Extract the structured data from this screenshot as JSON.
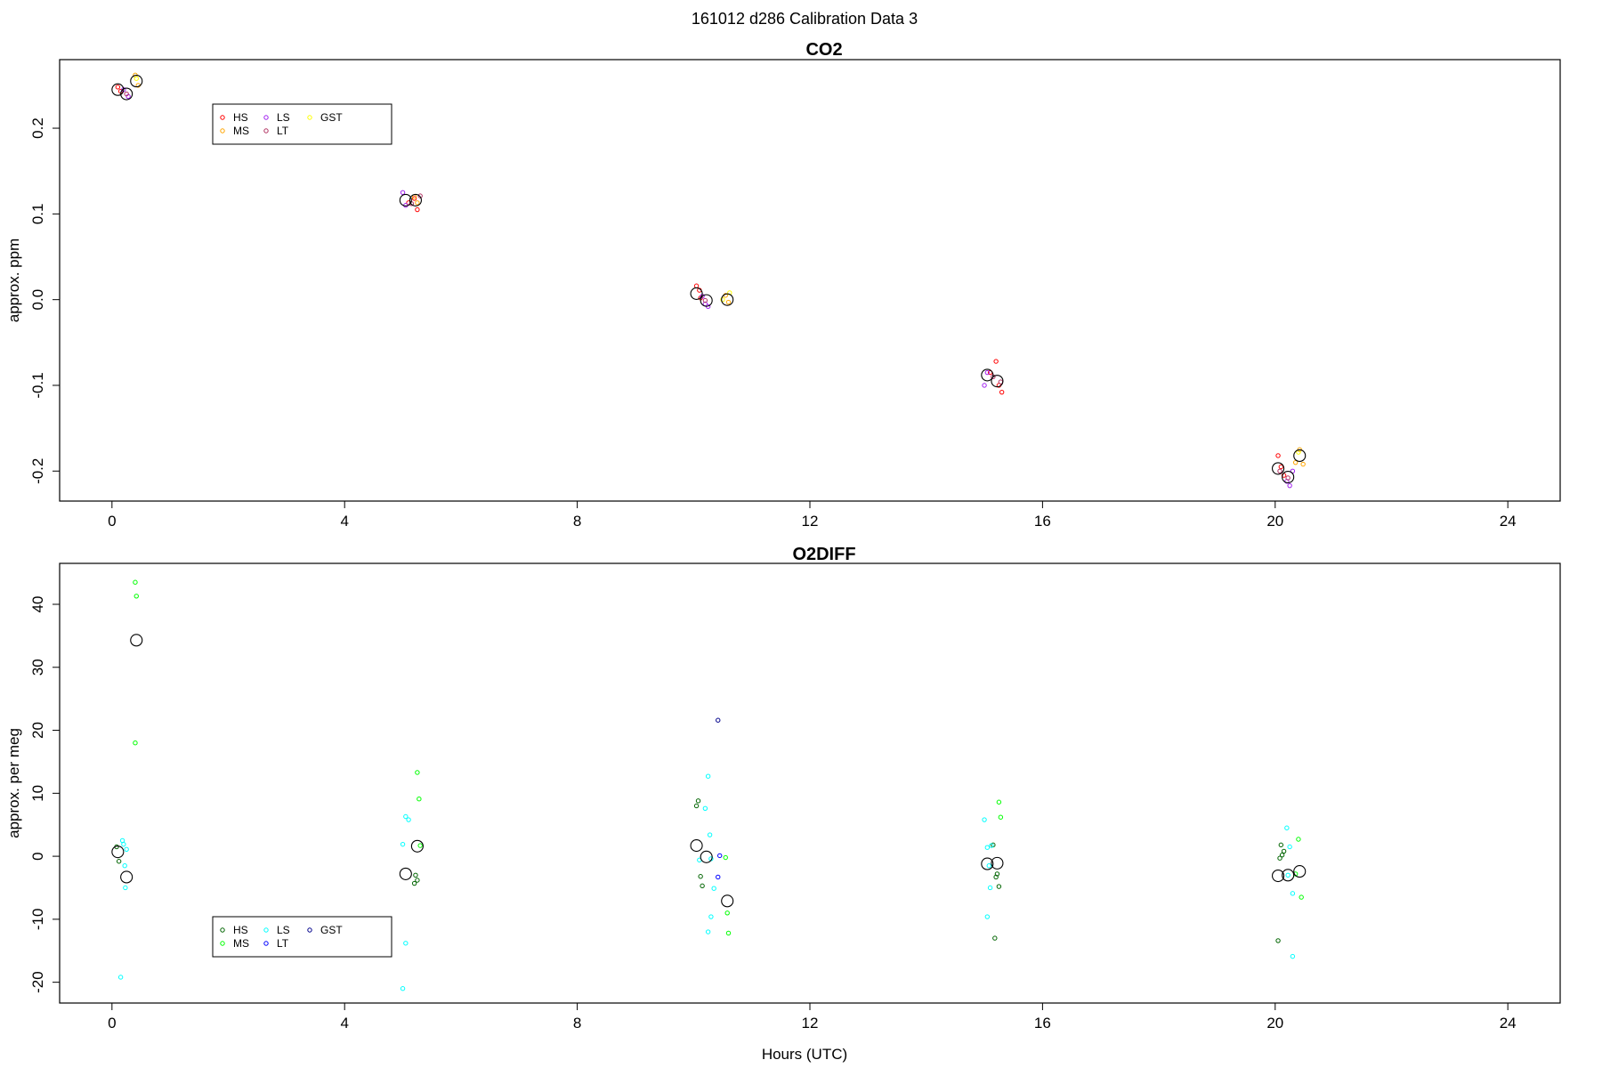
{
  "page_title": "161012   d286   Calibration Data 3",
  "colors": {
    "HS": "#ff0000",
    "MS": "#ffa500",
    "LS": "#a020f0",
    "LT": "#b03060",
    "GST": "#ffff00",
    "o2_HS": "#006400",
    "o2_MS": "#00ff00",
    "o2_LS": "#00ffff",
    "o2_LT": "#0000ff",
    "o2_GST": "#00008b",
    "mean_marker": "#000000"
  },
  "chart_data": [
    {
      "type": "scatter",
      "title": "CO2",
      "xlabel": "",
      "ylabel": "approx. ppm",
      "xlim": [
        -0.9,
        24.9
      ],
      "ylim": [
        -0.235,
        0.28
      ],
      "xticks": [
        "0",
        "4",
        "8",
        "12",
        "16",
        "20",
        "24"
      ],
      "yticks": [
        "-0.2",
        "-0.1",
        "0.0",
        "0.1",
        "0.2"
      ],
      "legend": {
        "position": "top-left",
        "entries": [
          "HS",
          "MS",
          "LS",
          "LT",
          "GST"
        ]
      },
      "series": [
        {
          "name": "HS",
          "points": [
            [
              0.1,
              0.248
            ],
            [
              0.15,
              0.243
            ],
            [
              5.1,
              0.113
            ],
            [
              5.2,
              0.118
            ],
            [
              5.25,
              0.105
            ],
            [
              10.05,
              0.016
            ],
            [
              10.1,
              0.011
            ],
            [
              10.12,
              0.002
            ],
            [
              15.1,
              -0.085
            ],
            [
              15.2,
              -0.072
            ],
            [
              15.25,
              -0.1
            ],
            [
              15.3,
              -0.108
            ],
            [
              20.05,
              -0.182
            ],
            [
              20.1,
              -0.195
            ],
            [
              20.15,
              -0.205
            ]
          ]
        },
        {
          "name": "MS",
          "points": [
            [
              0.4,
              0.262
            ],
            [
              0.45,
              0.25
            ],
            [
              5.2,
              0.12
            ],
            [
              5.25,
              0.113
            ],
            [
              10.55,
              0.005
            ],
            [
              10.6,
              -0.003
            ],
            [
              20.35,
              -0.19
            ],
            [
              20.42,
              -0.175
            ],
            [
              20.48,
              -0.192
            ]
          ]
        },
        {
          "name": "LS",
          "points": [
            [
              0.2,
              0.245
            ],
            [
              0.28,
              0.237
            ],
            [
              5.0,
              0.125
            ],
            [
              5.05,
              0.11
            ],
            [
              10.2,
              -0.005
            ],
            [
              10.25,
              -0.008
            ],
            [
              10.15,
              0.004
            ],
            [
              15.05,
              -0.085
            ],
            [
              15.0,
              -0.1
            ],
            [
              20.2,
              -0.212
            ],
            [
              20.3,
              -0.2
            ],
            [
              20.25,
              -0.217
            ]
          ]
        },
        {
          "name": "LT",
          "points": [
            [
              0.25,
              0.24
            ],
            [
              5.15,
              0.112
            ],
            [
              5.3,
              0.121
            ],
            [
              10.2,
              -0.001
            ],
            [
              15.15,
              -0.09
            ],
            [
              15.28,
              -0.096
            ],
            [
              20.08,
              -0.2
            ],
            [
              20.22,
              -0.208
            ]
          ]
        },
        {
          "name": "GST",
          "points": [
            [
              0.42,
              0.258
            ],
            [
              10.62,
              0.008
            ],
            [
              10.5,
              0.0
            ],
            [
              20.4,
              -0.178
            ]
          ]
        },
        {
          "name": "mean",
          "marker": "large-circle",
          "points": [
            [
              0.1,
              0.245
            ],
            [
              0.25,
              0.24
            ],
            [
              0.42,
              0.255
            ],
            [
              5.05,
              0.116
            ],
            [
              5.22,
              0.116
            ],
            [
              10.05,
              0.007
            ],
            [
              10.22,
              -0.001
            ],
            [
              10.58,
              0.0
            ],
            [
              15.05,
              -0.088
            ],
            [
              15.22,
              -0.095
            ],
            [
              20.05,
              -0.197
            ],
            [
              20.22,
              -0.207
            ],
            [
              20.42,
              -0.182
            ]
          ]
        }
      ]
    },
    {
      "type": "scatter",
      "title": "O2DIFF",
      "xlabel": "Hours (UTC)",
      "ylabel": "approx. per meg",
      "xlim": [
        -0.9,
        24.9
      ],
      "ylim": [
        -23.3,
        46.5
      ],
      "xticks": [
        "0",
        "4",
        "8",
        "12",
        "16",
        "20",
        "24"
      ],
      "yticks": [
        "-20",
        "-10",
        "0",
        "10",
        "20",
        "30",
        "40"
      ],
      "legend": {
        "position": "bottom-left",
        "entries": [
          "HS",
          "MS",
          "LS",
          "LT",
          "GST"
        ]
      },
      "series": [
        {
          "name": "HS",
          "points": [
            [
              0.08,
              1.5
            ],
            [
              0.12,
              -0.8
            ],
            [
              5.22,
              -3.0
            ],
            [
              5.25,
              -3.8
            ],
            [
              5.2,
              -4.3
            ],
            [
              10.05,
              8.0
            ],
            [
              10.08,
              8.8
            ],
            [
              10.12,
              -3.2
            ],
            [
              10.15,
              -4.7
            ],
            [
              15.15,
              1.8
            ],
            [
              15.2,
              -3.3
            ],
            [
              15.22,
              -2.8
            ],
            [
              15.25,
              -4.8
            ],
            [
              15.18,
              -13.0
            ],
            [
              20.05,
              -13.4
            ],
            [
              20.08,
              -0.3
            ],
            [
              20.1,
              1.8
            ],
            [
              20.12,
              0.2
            ],
            [
              20.15,
              0.8
            ]
          ]
        },
        {
          "name": "MS",
          "points": [
            [
              0.4,
              43.5
            ],
            [
              0.42,
              41.3
            ],
            [
              0.4,
              18.0
            ],
            [
              5.25,
              13.3
            ],
            [
              5.28,
              9.1
            ],
            [
              5.3,
              1.7
            ],
            [
              10.55,
              -0.2
            ],
            [
              10.58,
              -9.0
            ],
            [
              10.6,
              -12.2
            ],
            [
              15.25,
              8.6
            ],
            [
              15.28,
              6.2
            ],
            [
              20.4,
              2.7
            ],
            [
              20.45,
              -6.5
            ],
            [
              20.35,
              -2.8
            ]
          ]
        },
        {
          "name": "LS",
          "points": [
            [
              0.18,
              2.5
            ],
            [
              0.2,
              1.9
            ],
            [
              0.25,
              1.1
            ],
            [
              0.22,
              -1.5
            ],
            [
              0.23,
              -5.0
            ],
            [
              0.15,
              -19.2
            ],
            [
              5.05,
              6.3
            ],
            [
              5.1,
              5.8
            ],
            [
              5.0,
              1.9
            ],
            [
              5.05,
              -13.8
            ],
            [
              5.0,
              -21.0
            ],
            [
              10.25,
              12.7
            ],
            [
              10.2,
              7.6
            ],
            [
              10.28,
              3.4
            ],
            [
              10.3,
              -0.4
            ],
            [
              10.35,
              -5.1
            ],
            [
              10.3,
              -9.6
            ],
            [
              10.25,
              -12.0
            ],
            [
              10.1,
              -0.6
            ],
            [
              15.0,
              5.8
            ],
            [
              15.05,
              1.4
            ],
            [
              15.08,
              -1.5
            ],
            [
              15.1,
              -5.0
            ],
            [
              15.05,
              -9.6
            ],
            [
              15.12,
              1.7
            ],
            [
              20.2,
              4.5
            ],
            [
              20.25,
              1.5
            ],
            [
              20.22,
              -3.0
            ],
            [
              20.3,
              -5.9
            ],
            [
              20.3,
              -15.9
            ]
          ]
        },
        {
          "name": "LT",
          "points": [
            [
              10.45,
              0.1
            ],
            [
              10.42,
              -3.3
            ]
          ]
        },
        {
          "name": "GST",
          "points": [
            [
              10.42,
              21.6
            ]
          ]
        },
        {
          "name": "mean",
          "marker": "large-circle",
          "points": [
            [
              0.1,
              0.7
            ],
            [
              0.25,
              -3.3
            ],
            [
              0.42,
              34.3
            ],
            [
              5.05,
              -2.8
            ],
            [
              5.25,
              1.6
            ],
            [
              10.05,
              1.7
            ],
            [
              10.22,
              -0.1
            ],
            [
              10.58,
              -7.1
            ],
            [
              15.05,
              -1.2
            ],
            [
              15.22,
              -1.1
            ],
            [
              20.05,
              -3.1
            ],
            [
              20.22,
              -3.0
            ],
            [
              20.42,
              -2.4
            ]
          ]
        }
      ]
    }
  ]
}
